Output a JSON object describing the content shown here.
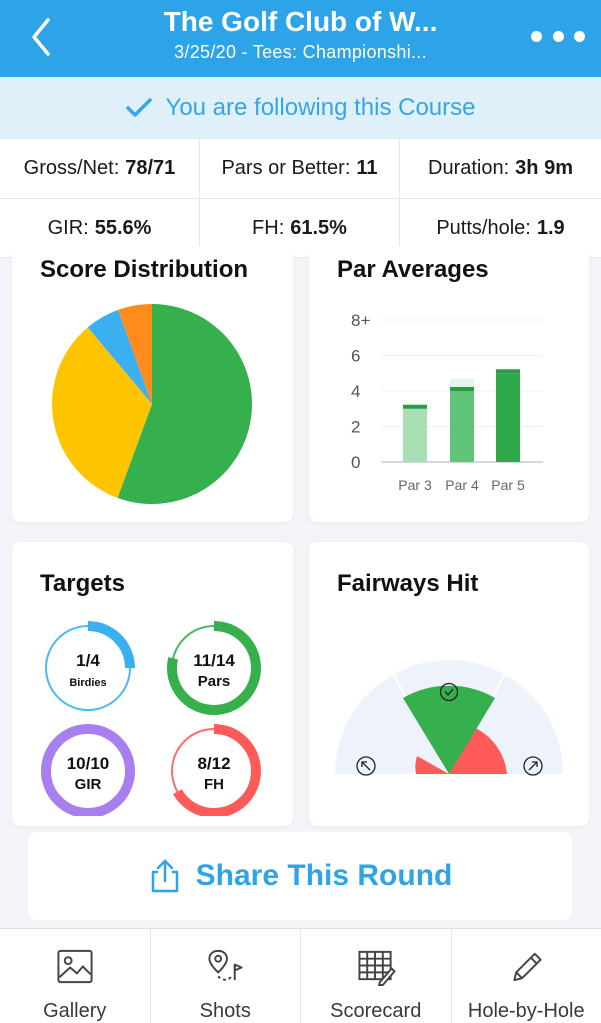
{
  "header": {
    "title": "The Golf Club of W...",
    "subtitle": "3/25/20 - Tees: Championshi..."
  },
  "follow_banner": {
    "text": "You are following this Course"
  },
  "stats": {
    "gross_net_label": "Gross/Net:",
    "gross_net_value": "78/71",
    "pars_label": "Pars or Better:",
    "pars_value": "11",
    "duration_label": "Duration:",
    "duration_value": "3h 9m",
    "gir_label": "GIR:",
    "gir_value": "55.6%",
    "fh_label": "FH:",
    "fh_value": "61.5%",
    "putts_label": "Putts/hole:",
    "putts_value": "1.9"
  },
  "score_distribution": {
    "title": "Score Distribution",
    "chart_data": {
      "type": "pie",
      "slices": [
        {
          "value": 55.6,
          "color": "#35b04c"
        },
        {
          "value": 33.3,
          "color": "#ffc400"
        },
        {
          "value": 5.6,
          "color": "#3bb0f0"
        },
        {
          "value": 5.5,
          "color": "#ff8c1a"
        }
      ]
    }
  },
  "par_averages": {
    "title": "Par Averages",
    "chart_data": {
      "type": "bar",
      "categories": [
        "Par 3",
        "Par 4",
        "Par 5"
      ],
      "values": [
        3.0,
        4.0,
        5.0
      ],
      "max_values": [
        3.2,
        4.7,
        5.1
      ],
      "ylim": [
        0,
        8
      ],
      "y_ticks": [
        "0",
        "2",
        "4",
        "6",
        "8+"
      ],
      "colors": [
        "#a8dfb4",
        "#5fc477",
        "#2fa84a"
      ]
    }
  },
  "targets": {
    "title": "Targets",
    "rings": [
      {
        "top": "1/4",
        "bottom": "Birdies",
        "progress": 0.25,
        "color": "#3bb0f0"
      },
      {
        "top": "11/14",
        "bottom": "Pars",
        "progress": 0.786,
        "color": "#35b04c"
      },
      {
        "top": "10/10",
        "bottom": "GIR",
        "progress": 1.0,
        "color": "#a87ff0"
      },
      {
        "top": "8/12",
        "bottom": "FH",
        "progress": 0.667,
        "color": "#ff5a5a"
      }
    ]
  },
  "fairways_hit": {
    "title": "Fairways Hit",
    "hit_color": "#35b04c",
    "miss_color": "#ff5a5a"
  },
  "share": {
    "label": "Share This Round"
  },
  "tabbar": {
    "items": [
      {
        "label": "Gallery",
        "icon": "gallery-icon"
      },
      {
        "label": "Shots",
        "icon": "shots-icon"
      },
      {
        "label": "Scorecard",
        "icon": "scorecard-icon"
      },
      {
        "label": "Hole-by-Hole",
        "icon": "pencil-icon"
      }
    ]
  }
}
